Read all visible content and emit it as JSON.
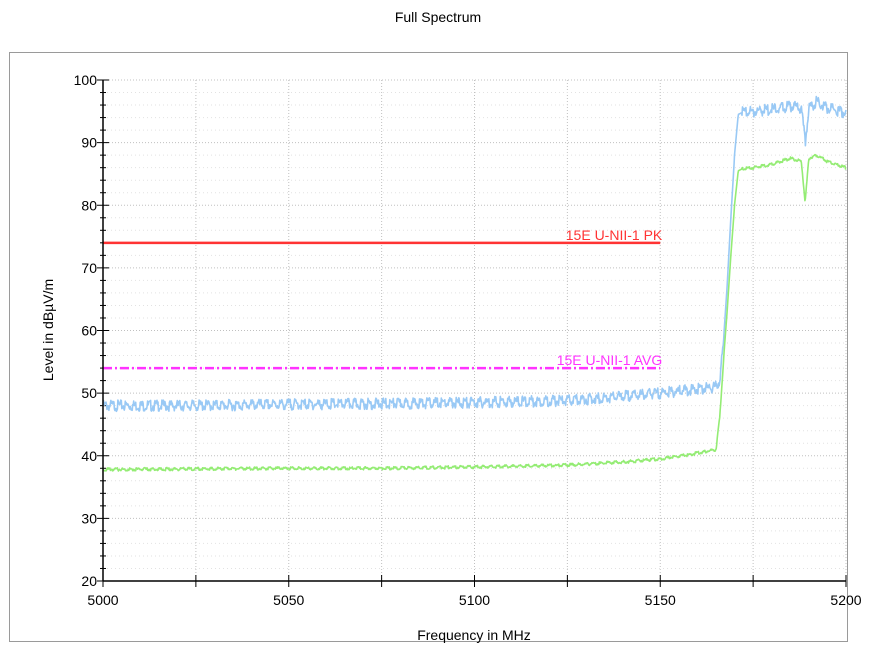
{
  "chart_data": {
    "type": "line",
    "title": "Full Spectrum",
    "xlabel": "Frequency in MHz",
    "ylabel": "Level in dBµV/m",
    "xlim": [
      5000,
      5200
    ],
    "ylim": [
      20,
      100
    ],
    "x_ticks": [
      5000,
      5050,
      5100,
      5150,
      5200
    ],
    "y_ticks": [
      20,
      30,
      40,
      50,
      60,
      70,
      80,
      90,
      100
    ],
    "grid": true,
    "series": [
      {
        "color": "#99c9f5",
        "x": [
          5000,
          5025,
          5050,
          5075,
          5100,
          5125,
          5140,
          5150,
          5158,
          5165,
          5166,
          5167,
          5168,
          5169,
          5170,
          5171,
          5172,
          5175,
          5180,
          5185,
          5188,
          5189,
          5190,
          5192,
          5195,
          5200
        ],
        "y": [
          48,
          48,
          48.2,
          48.3,
          48.5,
          48.8,
          49.5,
          50,
          50.5,
          51,
          52,
          58,
          67,
          78,
          88,
          94.5,
          94.8,
          95,
          95.3,
          95.8,
          95.5,
          90,
          95.5,
          96.5,
          95.5,
          94.8
        ]
      },
      {
        "color": "#94ec74",
        "x": [
          5000,
          5025,
          5050,
          5075,
          5100,
          5125,
          5140,
          5150,
          5158,
          5165,
          5166,
          5167,
          5168,
          5169,
          5170,
          5171,
          5172,
          5175,
          5180,
          5185,
          5188,
          5189,
          5190,
          5192,
          5195,
          5200
        ],
        "y": [
          37.8,
          37.9,
          38,
          38,
          38.2,
          38.5,
          39,
          39.5,
          40.2,
          41,
          46,
          55,
          63,
          72,
          80,
          85.5,
          85.8,
          86,
          86.5,
          87.5,
          87,
          80.5,
          87.5,
          88,
          87,
          86
        ]
      }
    ],
    "limit_lines": [
      {
        "label": "15E U-NII-1 PK",
        "y": 74,
        "x_start": 5000,
        "x_end": 5150,
        "color": "#ff3333",
        "style": "solid"
      },
      {
        "label": "15E U-NII-1 AVG",
        "y": 54,
        "x_start": 5000,
        "x_end": 5150,
        "color": "#ff33ff",
        "style": "dash-dot"
      }
    ]
  }
}
